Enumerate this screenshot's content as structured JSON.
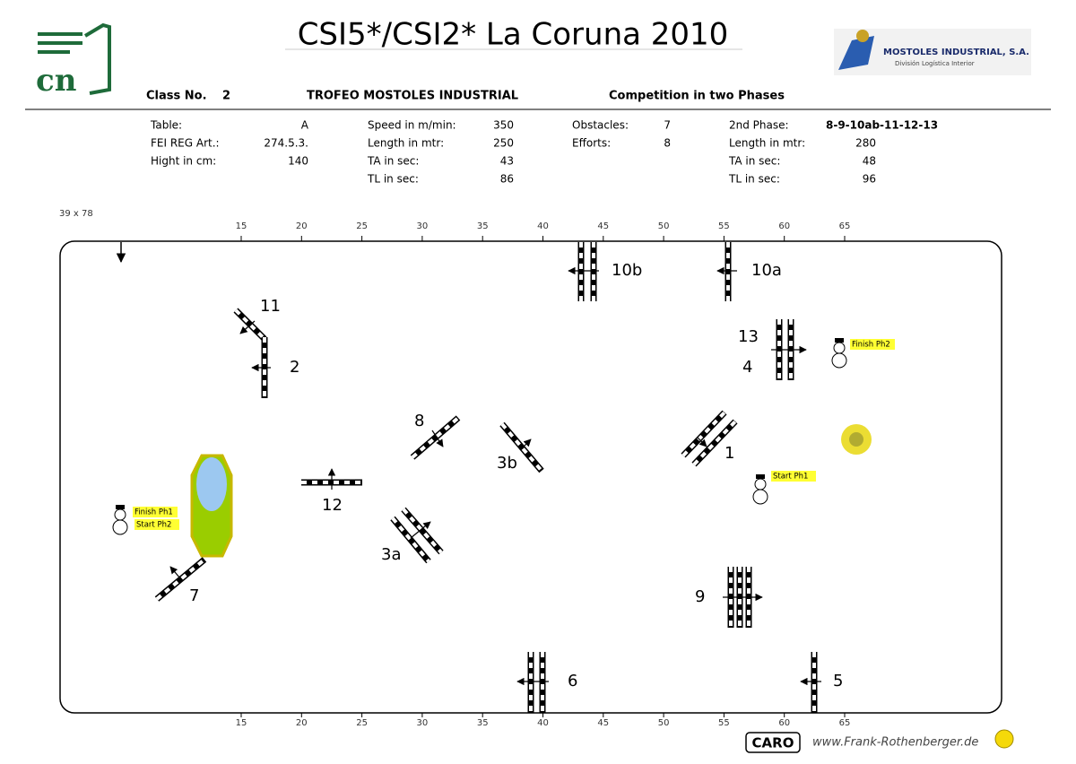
{
  "header": {
    "title": "CSI5*/CSI2* La Coruna 2010",
    "class_label": "Class No.",
    "class_no": "2",
    "trophy": "TROFEO MOSTOLES INDUSTRIAL",
    "competition": "Competition in two Phases"
  },
  "logo_left": "cn",
  "logo_right": {
    "name": "MOSTOLES INDUSTRIAL, S.A.",
    "sub": "División Logística Interior"
  },
  "info": [
    [
      {
        "label": "Table:",
        "value": "A"
      },
      {
        "label": "FEI REG Art.:",
        "value": "274.5.3."
      },
      {
        "label": "Hight in cm:",
        "value": "140"
      }
    ],
    [
      {
        "label": "Speed in m/min:",
        "value": "350"
      },
      {
        "label": "Length in mtr:",
        "value": "250"
      },
      {
        "label": "TA in sec:",
        "value": "43"
      },
      {
        "label": "TL in sec:",
        "value": "86"
      }
    ],
    [
      {
        "label": "Obstacles:",
        "value": "7"
      },
      {
        "label": "Efforts:",
        "value": "8"
      }
    ],
    [
      {
        "label": "2nd Phase:",
        "value": "8-9-10ab-11-12-13"
      },
      {
        "label": "Length in mtr:",
        "value": "280"
      },
      {
        "label": "TA in sec:",
        "value": "48"
      },
      {
        "label": "TL in sec:",
        "value": "96"
      }
    ]
  ],
  "arena": {
    "size": "39 x 78",
    "scale_ticks": [
      15,
      20,
      25,
      30,
      35,
      40,
      45,
      50,
      55,
      60,
      65
    ]
  },
  "obstacles": [
    "10b",
    "10a",
    "11",
    "2",
    "13",
    "4",
    "8",
    "3b",
    "1",
    "12",
    "3a",
    "7",
    "9",
    "6",
    "5"
  ],
  "notes": [
    "Finish Ph2",
    "Start Ph1",
    "Finish Ph1",
    "Start Ph2"
  ],
  "footer": {
    "brand": "CARO",
    "url": "www.Frank-Rothenberger.de"
  }
}
